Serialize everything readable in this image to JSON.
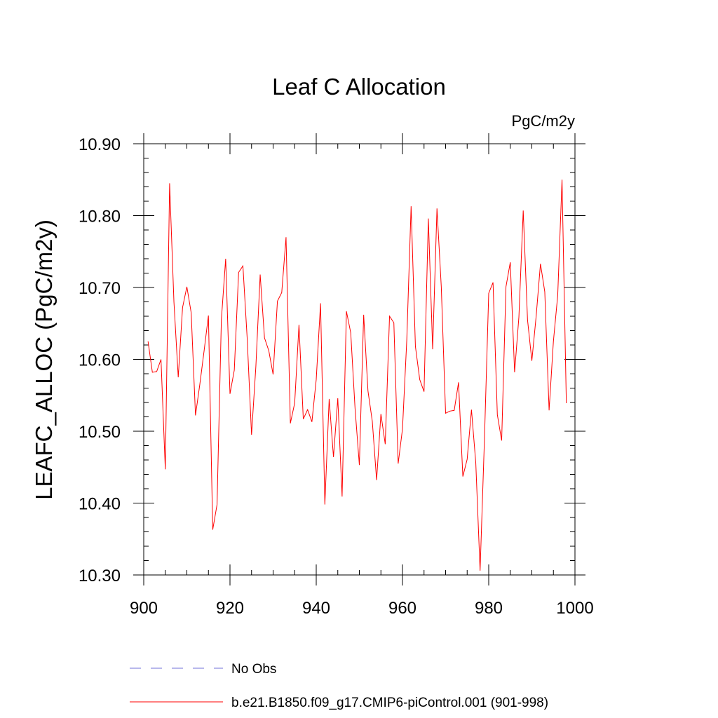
{
  "chart_data": {
    "type": "line",
    "title": "Leaf C Allocation",
    "units": "PgC/m2y",
    "xlabel": "",
    "ylabel": "LEAFC_ALLOC  (PgC/m2y)",
    "xlim": [
      900,
      1000
    ],
    "ylim": [
      10.3,
      10.9
    ],
    "xticks": [
      900,
      920,
      940,
      960,
      980,
      1000
    ],
    "xtick_labels": [
      "900",
      "920",
      "940",
      "960",
      "980",
      "1000"
    ],
    "yticks": [
      10.3,
      10.4,
      10.5,
      10.6,
      10.7,
      10.8,
      10.9
    ],
    "ytick_labels": [
      "10.30",
      "10.40",
      "10.50",
      "10.60",
      "10.70",
      "10.80",
      "10.90"
    ],
    "grid": false,
    "legend_position": "bottom",
    "series": [
      {
        "name": "b.e21.B1850.f09_g17.CMIP6-piControl.001 (901-998)",
        "color": "#ff0000",
        "style": "solid",
        "x": [
          901,
          902,
          903,
          904,
          905,
          906,
          907,
          908,
          909,
          910,
          911,
          912,
          913,
          914,
          915,
          916,
          917,
          918,
          919,
          920,
          921,
          922,
          923,
          924,
          925,
          926,
          927,
          928,
          929,
          930,
          931,
          932,
          933,
          934,
          935,
          936,
          937,
          938,
          939,
          940,
          941,
          942,
          943,
          944,
          945,
          946,
          947,
          948,
          949,
          950,
          951,
          952,
          953,
          954,
          955,
          956,
          957,
          958,
          959,
          960,
          961,
          962,
          963,
          964,
          965,
          966,
          967,
          968,
          969,
          970,
          971,
          972,
          973,
          974,
          975,
          976,
          977,
          978,
          979,
          980,
          981,
          982,
          983,
          984,
          985,
          986,
          987,
          988,
          989,
          990,
          991,
          992,
          993,
          994,
          995,
          996,
          997,
          998
        ],
        "values": [
          10.625,
          10.582,
          10.583,
          10.6,
          10.447,
          10.845,
          10.68,
          10.575,
          10.672,
          10.701,
          10.665,
          10.522,
          10.565,
          10.612,
          10.661,
          10.363,
          10.398,
          10.655,
          10.74,
          10.552,
          10.585,
          10.721,
          10.73,
          10.628,
          10.495,
          10.59,
          10.718,
          10.63,
          10.612,
          10.579,
          10.681,
          10.693,
          10.77,
          10.511,
          10.539,
          10.648,
          10.517,
          10.53,
          10.513,
          10.572,
          10.678,
          10.398,
          10.545,
          10.464,
          10.546,
          10.409,
          10.667,
          10.637,
          10.532,
          10.453,
          10.662,
          10.556,
          10.514,
          10.432,
          10.524,
          10.482,
          10.66,
          10.651,
          10.455,
          10.503,
          10.627,
          10.813,
          10.618,
          10.572,
          10.555,
          10.796,
          10.614,
          10.81,
          10.701,
          10.525,
          10.528,
          10.529,
          10.568,
          10.437,
          10.461,
          10.53,
          10.456,
          10.306,
          10.487,
          10.692,
          10.707,
          10.523,
          10.487,
          10.701,
          10.735,
          10.582,
          10.659,
          10.807,
          10.655,
          10.598,
          10.66,
          10.733,
          10.694,
          10.529,
          10.625,
          10.689,
          10.85,
          10.539
        ]
      },
      {
        "name": "No Obs",
        "color": "#7070d8",
        "style": "dashed",
        "x": [],
        "values": []
      }
    ]
  }
}
